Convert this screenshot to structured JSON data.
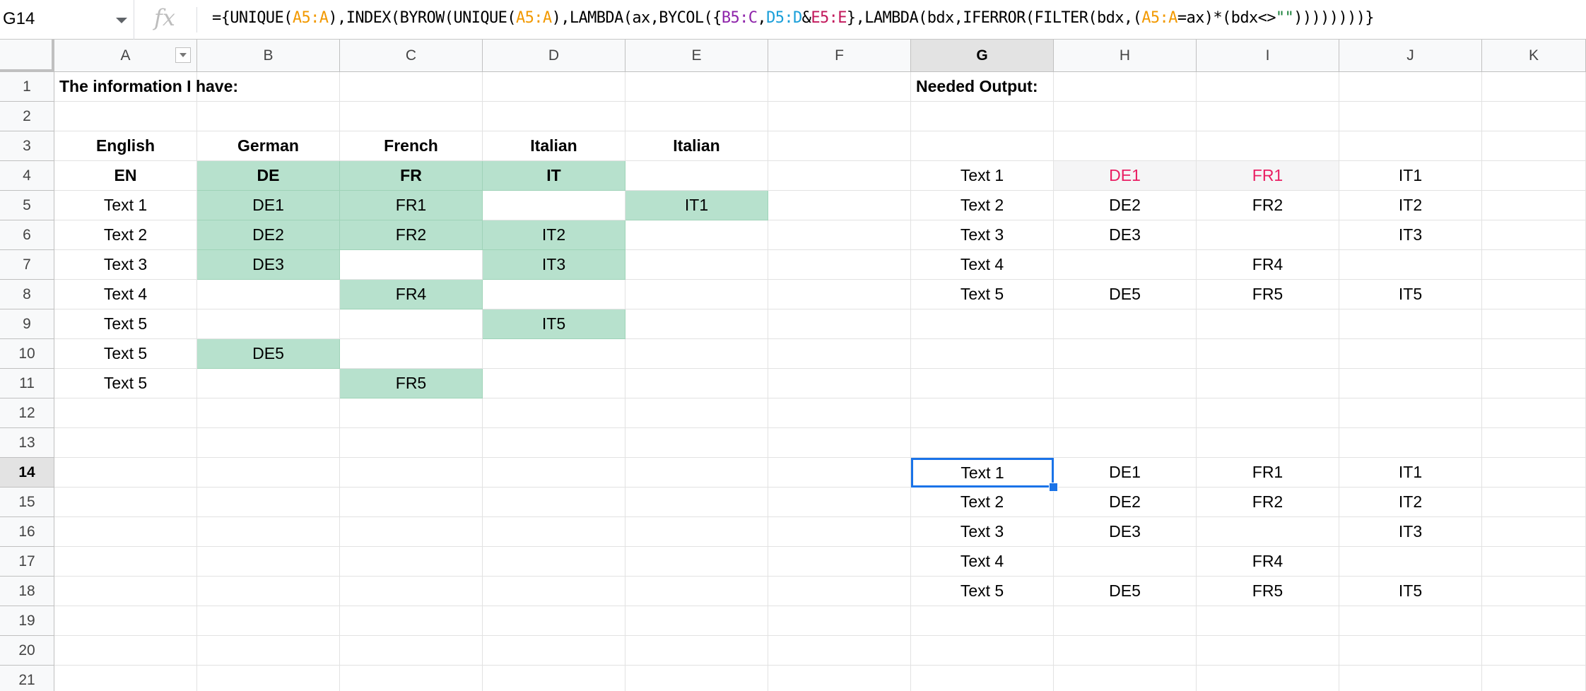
{
  "name_box": "G14",
  "formula_parts": [
    {
      "t": "={UNIQUE(",
      "c": ""
    },
    {
      "t": "A5:A",
      "c": "r-orange"
    },
    {
      "t": "),INDEX(BYROW(UNIQUE(",
      "c": ""
    },
    {
      "t": "A5:A",
      "c": "r-orange"
    },
    {
      "t": "),LAMBDA(ax,BYCOL({",
      "c": ""
    },
    {
      "t": "B5:C",
      "c": "r-purple"
    },
    {
      "t": ",",
      "c": ""
    },
    {
      "t": "D5:D",
      "c": "r-cyan"
    },
    {
      "t": "&",
      "c": ""
    },
    {
      "t": "E5:E",
      "c": "r-red"
    },
    {
      "t": "},LAMBDA(bdx,IFERROR(FILTER(bdx,(",
      "c": ""
    },
    {
      "t": "A5:A",
      "c": "r-orange"
    },
    {
      "t": "=ax)*(bdx<>",
      "c": ""
    },
    {
      "t": "\"\"",
      "c": "r-green"
    },
    {
      "t": "))))))))}",
      "c": ""
    }
  ],
  "columns": [
    "A",
    "B",
    "C",
    "D",
    "E",
    "F",
    "G",
    "H",
    "I",
    "J",
    "K"
  ],
  "rows": [
    "1",
    "2",
    "3",
    "4",
    "5",
    "6",
    "7",
    "8",
    "9",
    "10",
    "11",
    "12",
    "13",
    "14",
    "15",
    "16",
    "17",
    "18",
    "19",
    "20",
    "21"
  ],
  "selected_column": "G",
  "selected_row": "14",
  "colors": {
    "green_fill": "#b7e1cd",
    "pink_text": "#e91e63",
    "selection": "#1a73e8"
  },
  "cells": [
    {
      "ref": "A1",
      "v": "The information I have:",
      "s": "bold left"
    },
    {
      "ref": "G1",
      "v": "Needed Output:",
      "s": "bold left"
    },
    {
      "ref": "A3",
      "v": "English",
      "s": "bold"
    },
    {
      "ref": "B3",
      "v": "German",
      "s": "bold"
    },
    {
      "ref": "C3",
      "v": "French",
      "s": "bold"
    },
    {
      "ref": "D3",
      "v": "Italian",
      "s": "bold"
    },
    {
      "ref": "E3",
      "v": "Italian",
      "s": "bold"
    },
    {
      "ref": "A4",
      "v": "EN",
      "s": "bold"
    },
    {
      "ref": "B4",
      "v": "DE",
      "s": "bold green"
    },
    {
      "ref": "C4",
      "v": "FR",
      "s": "bold green"
    },
    {
      "ref": "D4",
      "v": "IT",
      "s": "bold green"
    },
    {
      "ref": "G4",
      "v": "Text 1",
      "s": ""
    },
    {
      "ref": "H4",
      "v": "DE1",
      "s": "pink grey"
    },
    {
      "ref": "I4",
      "v": "FR1",
      "s": "pink grey"
    },
    {
      "ref": "J4",
      "v": "IT1",
      "s": ""
    },
    {
      "ref": "A5",
      "v": "Text 1",
      "s": ""
    },
    {
      "ref": "B5",
      "v": "DE1",
      "s": "green"
    },
    {
      "ref": "C5",
      "v": "FR1",
      "s": "green"
    },
    {
      "ref": "E5",
      "v": "IT1",
      "s": "green"
    },
    {
      "ref": "G5",
      "v": "Text 2",
      "s": ""
    },
    {
      "ref": "H5",
      "v": "DE2",
      "s": ""
    },
    {
      "ref": "I5",
      "v": "FR2",
      "s": ""
    },
    {
      "ref": "J5",
      "v": "IT2",
      "s": ""
    },
    {
      "ref": "A6",
      "v": "Text 2",
      "s": ""
    },
    {
      "ref": "B6",
      "v": "DE2",
      "s": "green"
    },
    {
      "ref": "C6",
      "v": "FR2",
      "s": "green"
    },
    {
      "ref": "D6",
      "v": "IT2",
      "s": "green"
    },
    {
      "ref": "G6",
      "v": "Text 3",
      "s": ""
    },
    {
      "ref": "H6",
      "v": "DE3",
      "s": ""
    },
    {
      "ref": "J6",
      "v": "IT3",
      "s": ""
    },
    {
      "ref": "A7",
      "v": "Text 3",
      "s": ""
    },
    {
      "ref": "B7",
      "v": "DE3",
      "s": "green"
    },
    {
      "ref": "D7",
      "v": "IT3",
      "s": "green"
    },
    {
      "ref": "G7",
      "v": "Text 4",
      "s": ""
    },
    {
      "ref": "I7",
      "v": "FR4",
      "s": ""
    },
    {
      "ref": "A8",
      "v": "Text 4",
      "s": ""
    },
    {
      "ref": "C8",
      "v": "FR4",
      "s": "green"
    },
    {
      "ref": "G8",
      "v": "Text 5",
      "s": ""
    },
    {
      "ref": "H8",
      "v": "DE5",
      "s": ""
    },
    {
      "ref": "I8",
      "v": "FR5",
      "s": ""
    },
    {
      "ref": "J8",
      "v": "IT5",
      "s": ""
    },
    {
      "ref": "A9",
      "v": "Text 5",
      "s": ""
    },
    {
      "ref": "D9",
      "v": "IT5",
      "s": "green"
    },
    {
      "ref": "A10",
      "v": "Text 5",
      "s": ""
    },
    {
      "ref": "B10",
      "v": "DE5",
      "s": "green"
    },
    {
      "ref": "A11",
      "v": "Text 5",
      "s": ""
    },
    {
      "ref": "C11",
      "v": "FR5",
      "s": "green"
    },
    {
      "ref": "G14",
      "v": "Text 1",
      "s": "active"
    },
    {
      "ref": "H14",
      "v": "DE1",
      "s": ""
    },
    {
      "ref": "I14",
      "v": "FR1",
      "s": ""
    },
    {
      "ref": "J14",
      "v": "IT1",
      "s": ""
    },
    {
      "ref": "G15",
      "v": "Text 2",
      "s": ""
    },
    {
      "ref": "H15",
      "v": "DE2",
      "s": ""
    },
    {
      "ref": "I15",
      "v": "FR2",
      "s": ""
    },
    {
      "ref": "J15",
      "v": "IT2",
      "s": ""
    },
    {
      "ref": "G16",
      "v": "Text 3",
      "s": ""
    },
    {
      "ref": "H16",
      "v": "DE3",
      "s": ""
    },
    {
      "ref": "J16",
      "v": "IT3",
      "s": ""
    },
    {
      "ref": "G17",
      "v": "Text 4",
      "s": ""
    },
    {
      "ref": "I17",
      "v": "FR4",
      "s": ""
    },
    {
      "ref": "G18",
      "v": "Text 5",
      "s": ""
    },
    {
      "ref": "H18",
      "v": "DE5",
      "s": ""
    },
    {
      "ref": "I18",
      "v": "FR5",
      "s": ""
    },
    {
      "ref": "J18",
      "v": "IT5",
      "s": ""
    }
  ],
  "green_empty_cells": []
}
